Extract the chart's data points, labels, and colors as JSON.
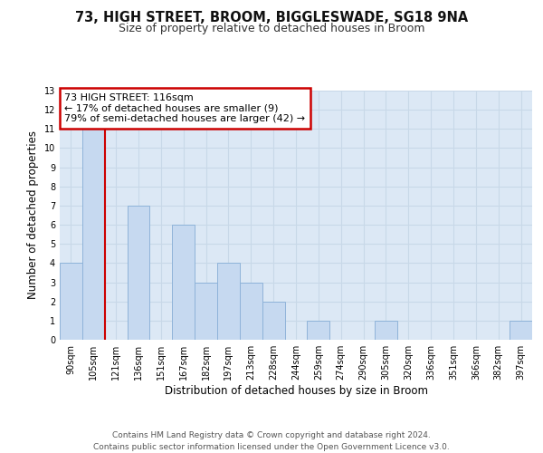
{
  "title1": "73, HIGH STREET, BROOM, BIGGLESWADE, SG18 9NA",
  "title2": "Size of property relative to detached houses in Broom",
  "xlabel": "Distribution of detached houses by size in Broom",
  "ylabel": "Number of detached properties",
  "footnote1": "Contains HM Land Registry data © Crown copyright and database right 2024.",
  "footnote2": "Contains public sector information licensed under the Open Government Licence v3.0.",
  "bar_labels": [
    "90sqm",
    "105sqm",
    "121sqm",
    "136sqm",
    "151sqm",
    "167sqm",
    "182sqm",
    "197sqm",
    "213sqm",
    "228sqm",
    "244sqm",
    "259sqm",
    "274sqm",
    "290sqm",
    "305sqm",
    "320sqm",
    "336sqm",
    "351sqm",
    "366sqm",
    "382sqm",
    "397sqm"
  ],
  "bar_values": [
    4,
    11,
    0,
    7,
    0,
    6,
    3,
    4,
    3,
    2,
    0,
    1,
    0,
    0,
    1,
    0,
    0,
    0,
    0,
    0,
    1
  ],
  "bar_color": "#c6d9f0",
  "bar_edge_color": "#8fb3d9",
  "property_line_label": "73 HIGH STREET: 116sqm",
  "annotation_line1": "← 17% of detached houses are smaller (9)",
  "annotation_line2": "79% of semi-detached houses are larger (42) →",
  "annotation_box_color": "#ffffff",
  "annotation_box_edge": "#cc0000",
  "property_line_color": "#cc0000",
  "ylim": [
    0,
    13
  ],
  "yticks": [
    0,
    1,
    2,
    3,
    4,
    5,
    6,
    7,
    8,
    9,
    10,
    11,
    12,
    13
  ],
  "grid_color": "#c8d8e8",
  "bg_color": "#dce8f5",
  "fig_bg_color": "#ffffff",
  "title1_fontsize": 10.5,
  "title2_fontsize": 9,
  "axis_label_fontsize": 8.5,
  "tick_fontsize": 7,
  "annotation_fontsize": 8,
  "footnote_fontsize": 6.5
}
